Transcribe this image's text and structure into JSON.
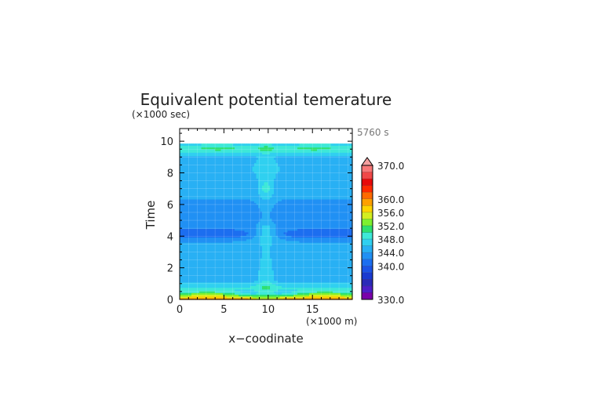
{
  "chart_data": {
    "type": "heatmap",
    "title": "Equivalent potential temerature",
    "xlabel": "x−coodinate",
    "ylabel": "Time",
    "x_unit": "(×1000 m)",
    "y_unit": "(×1000 sec)",
    "time_stamp": "5760 s",
    "xlim": [
      0,
      19.5
    ],
    "ylim": [
      0,
      10.8
    ],
    "x_ticks": [
      "0",
      "5",
      "10",
      "15"
    ],
    "y_ticks": [
      "0",
      "2",
      "4",
      "6",
      "8",
      "10"
    ],
    "x_tick_values": [
      0,
      5,
      10,
      15
    ],
    "y_tick_values": [
      0,
      2,
      4,
      6,
      8,
      10
    ],
    "data_top": 9.85,
    "colorbar": {
      "levels": [
        330,
        332,
        334,
        336,
        338,
        340,
        342,
        344,
        346,
        348,
        350,
        352,
        354,
        356,
        358,
        360,
        362,
        364,
        366,
        368,
        370
      ],
      "colors": [
        "#7a00aa",
        "#4d1ec8",
        "#2a2ab8",
        "#1a3ad0",
        "#1c52e6",
        "#1c6ef0",
        "#2090f4",
        "#28b0f4",
        "#30d0f0",
        "#3ee8d8",
        "#2ee070",
        "#7ef030",
        "#d4ee20",
        "#ffd400",
        "#ffa000",
        "#ff6a00",
        "#ff2a00",
        "#e80a0a",
        "#f04848",
        "#f87878"
      ],
      "labels": [
        "370.0",
        "360.0",
        "356.0",
        "352.0",
        "348.0",
        "344.0",
        "340.0",
        "330.0"
      ],
      "label_values": [
        370,
        360,
        356,
        352,
        348,
        344,
        340,
        330
      ]
    }
  }
}
